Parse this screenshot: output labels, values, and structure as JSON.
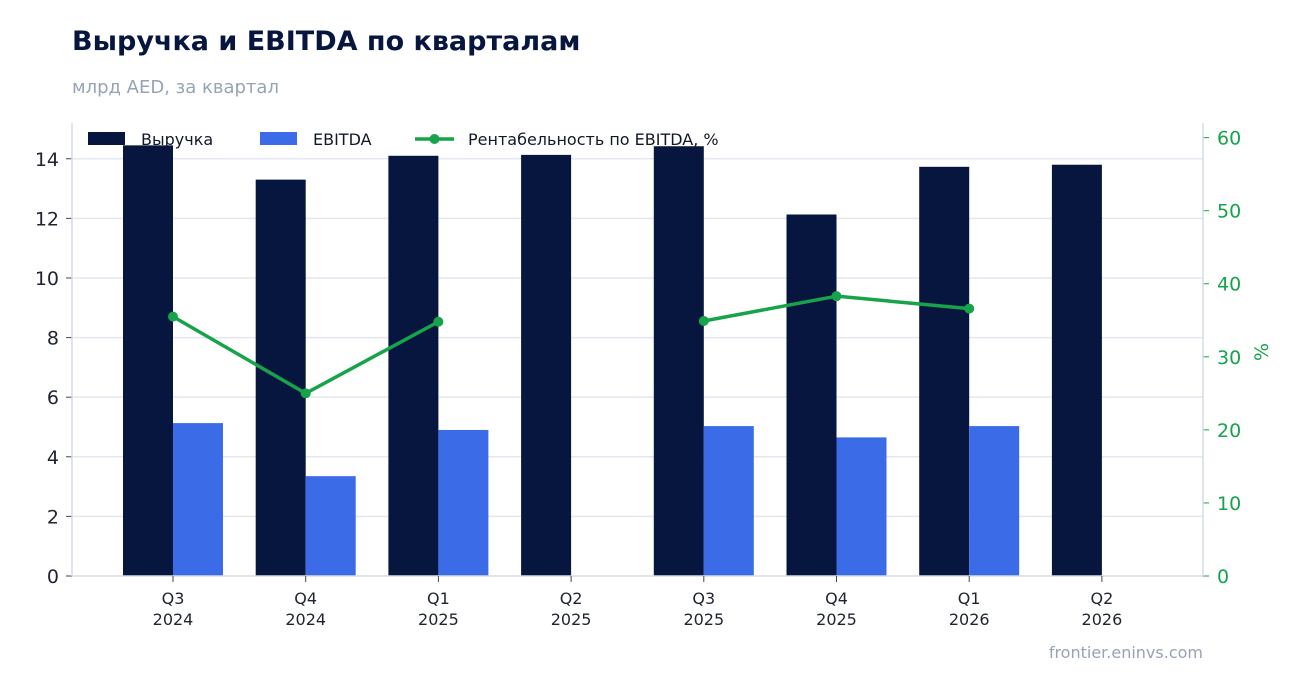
{
  "header": {
    "title": "Выручка и EBITDA по кварталам",
    "subtitle": "млрд AED, за квартал"
  },
  "footer": {
    "source": "frontier.eninvs.com"
  },
  "colors": {
    "revenue": "#06163f",
    "ebitda": "#3b6be6",
    "margin": "#16a34a",
    "grid": "#e3e8f0",
    "axis": "#d6dce6"
  },
  "chart_data": {
    "type": "bar",
    "categories": [
      [
        "Q3",
        "2024"
      ],
      [
        "Q4",
        "2024"
      ],
      [
        "Q1",
        "2025"
      ],
      [
        "Q2",
        "2025"
      ],
      [
        "Q3",
        "2025"
      ],
      [
        "Q4",
        "2025"
      ],
      [
        "Q1",
        "2026"
      ],
      [
        "Q2",
        "2026"
      ]
    ],
    "series": [
      {
        "name": "Выручка",
        "kind": "bar",
        "axis": "left",
        "values": [
          14.45,
          13.3,
          14.1,
          14.13,
          14.42,
          12.13,
          13.73,
          13.8
        ]
      },
      {
        "name": "EBITDA",
        "kind": "bar",
        "axis": "left",
        "values": [
          5.13,
          3.35,
          4.9,
          null,
          5.03,
          4.65,
          5.03,
          null
        ]
      },
      {
        "name": "Рентабельность по EBITDA, %",
        "kind": "line",
        "axis": "right",
        "values": [
          35.5,
          25.0,
          34.8,
          null,
          34.9,
          38.3,
          36.6,
          null
        ]
      }
    ],
    "ylim": [
      0,
      15.2
    ],
    "y2lim": [
      0,
      62
    ],
    "yticks": [
      0,
      2,
      4,
      6,
      8,
      10,
      12,
      14
    ],
    "y2ticks": [
      0,
      10,
      20,
      30,
      40,
      50,
      60
    ],
    "y2label": "%",
    "legend": "top-left",
    "grid": true
  }
}
